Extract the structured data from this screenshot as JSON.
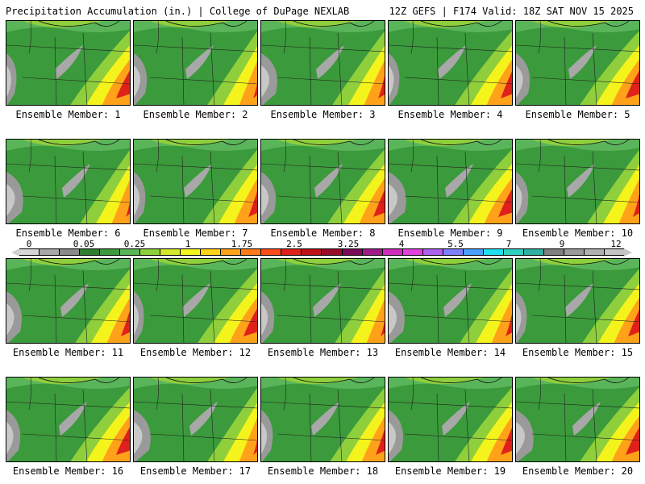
{
  "header": {
    "title_left": "Precipitation Accumulation (in.) | College of DuPage NEXLAB",
    "title_right": "12Z GEFS | F174 Valid: 18Z SAT NOV 15 2025"
  },
  "colorbar": {
    "tick_labels": [
      "0",
      "0.05",
      "0.25",
      "1",
      "1.75",
      "2.5",
      "3.25",
      "4",
      "5.5",
      "7",
      "9",
      "12"
    ],
    "colors": [
      "#d6d6d6",
      "#a8a8a8",
      "#8a8a8a",
      "#2f7d2f",
      "#3b9a3b",
      "#5ab55a",
      "#8fcf3c",
      "#d6e82a",
      "#f4f41c",
      "#ffd21a",
      "#ffa21a",
      "#ff7a1a",
      "#ff4a1a",
      "#e0201a",
      "#c0101a",
      "#9a0a2a",
      "#7a0a5a",
      "#a01a8a",
      "#d02ac0",
      "#e040e0",
      "#b060f0",
      "#8080ff",
      "#4aa0ff",
      "#20e0f0",
      "#30d0c0",
      "#30b0a0",
      "#808080",
      "#9a9a9a",
      "#b0b0b0",
      "#c4c4c4"
    ]
  },
  "members": [
    {
      "label": "Ensemble Member: 1"
    },
    {
      "label": "Ensemble Member: 2"
    },
    {
      "label": "Ensemble Member: 3"
    },
    {
      "label": "Ensemble Member: 4"
    },
    {
      "label": "Ensemble Member: 5"
    },
    {
      "label": "Ensemble Member: 6"
    },
    {
      "label": "Ensemble Member: 7"
    },
    {
      "label": "Ensemble Member: 8"
    },
    {
      "label": "Ensemble Member: 9"
    },
    {
      "label": "Ensemble Member: 10"
    },
    {
      "label": "Ensemble Member: 11"
    },
    {
      "label": "Ensemble Member: 12"
    },
    {
      "label": "Ensemble Member: 13"
    },
    {
      "label": "Ensemble Member: 14"
    },
    {
      "label": "Ensemble Member: 15"
    },
    {
      "label": "Ensemble Member: 16"
    },
    {
      "label": "Ensemble Member: 17"
    },
    {
      "label": "Ensemble Member: 18"
    },
    {
      "label": "Ensemble Member: 19"
    },
    {
      "label": "Ensemble Member: 20"
    }
  ]
}
